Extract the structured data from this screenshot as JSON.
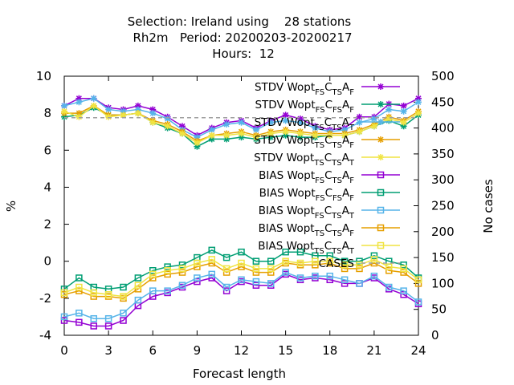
{
  "title": {
    "lines": [
      "Selection: Ireland using    28 stations",
      "Rh2m   Period: 20200203-20200217",
      "Hours:  12"
    ]
  },
  "chart_data": {
    "type": "line",
    "xlabel": "Forecast length",
    "ylabel": "%",
    "y2label": "No cases",
    "xlim": [
      0,
      24
    ],
    "ylim": [
      -4,
      10
    ],
    "y2lim": [
      0,
      500
    ],
    "xticks": [
      0,
      3,
      6,
      9,
      12,
      15,
      18,
      21,
      24
    ],
    "yticks": [
      -4,
      -2,
      0,
      2,
      4,
      6,
      8,
      10
    ],
    "y2ticks": [
      0,
      50,
      100,
      150,
      200,
      250,
      300,
      350,
      400,
      450,
      500
    ],
    "grid": false,
    "legend_position": "top-right",
    "x": [
      0,
      1,
      2,
      3,
      4,
      5,
      6,
      7,
      8,
      9,
      10,
      11,
      12,
      13,
      14,
      15,
      16,
      17,
      18,
      19,
      20,
      21,
      22,
      23,
      24
    ],
    "series": [
      {
        "name": "STDV Wopt_FS C_TS A_F",
        "color": "#9400d3",
        "marker": "star",
        "axis": "y",
        "values": [
          8.4,
          8.8,
          8.8,
          8.3,
          8.2,
          8.4,
          8.2,
          7.8,
          7.3,
          6.8,
          7.2,
          7.5,
          7.6,
          7.2,
          7.6,
          7.9,
          7.7,
          7.3,
          7.1,
          7.2,
          7.8,
          7.8,
          8.5,
          8.4,
          8.8
        ]
      },
      {
        "name": "STDV Wopt_FS C_FS A_F",
        "color": "#009e73",
        "marker": "star",
        "axis": "y",
        "values": [
          7.8,
          7.9,
          8.3,
          7.9,
          7.9,
          8.0,
          7.5,
          7.2,
          6.9,
          6.2,
          6.6,
          6.6,
          6.7,
          6.6,
          6.7,
          6.8,
          6.7,
          6.7,
          6.8,
          6.8,
          7.0,
          7.3,
          7.6,
          7.3,
          7.9
        ]
      },
      {
        "name": "STDV Wopt_FS C_TS A_T",
        "color": "#56b4e9",
        "marker": "star",
        "axis": "y",
        "values": [
          8.4,
          8.6,
          8.8,
          8.2,
          8.1,
          8.2,
          8.0,
          7.7,
          7.1,
          6.7,
          7.1,
          7.4,
          7.5,
          7.1,
          7.5,
          7.6,
          7.5,
          7.2,
          7.0,
          7.1,
          7.5,
          7.7,
          8.2,
          8.1,
          8.6
        ]
      },
      {
        "name": "STDV Wopt_TS C_TS A_F",
        "color": "#e69f00",
        "marker": "star",
        "axis": "y",
        "values": [
          8.0,
          8.0,
          8.4,
          7.9,
          7.9,
          8.0,
          7.6,
          7.4,
          7.0,
          6.5,
          6.8,
          6.9,
          7.0,
          6.8,
          7.0,
          7.1,
          7.0,
          6.9,
          6.9,
          6.9,
          7.1,
          7.4,
          7.8,
          7.6,
          8.1
        ]
      },
      {
        "name": "STDV Wopt_TS C_TS A_T",
        "color": "#f0e442",
        "marker": "star",
        "axis": "y",
        "values": [
          8.1,
          7.8,
          8.4,
          7.8,
          7.9,
          8.0,
          7.5,
          7.3,
          6.9,
          6.4,
          6.8,
          6.8,
          6.9,
          6.7,
          6.9,
          7.0,
          6.9,
          6.8,
          6.8,
          6.8,
          7.0,
          7.3,
          7.7,
          7.5,
          8.0
        ]
      },
      {
        "name": "BIAS Wopt_FS C_TS A_F",
        "color": "#9400d3",
        "marker": "square",
        "axis": "y",
        "values": [
          -3.2,
          -3.3,
          -3.5,
          -3.5,
          -3.2,
          -2.4,
          -1.9,
          -1.7,
          -1.4,
          -1.1,
          -0.9,
          -1.6,
          -1.1,
          -1.3,
          -1.3,
          -0.7,
          -1.0,
          -0.9,
          -1.0,
          -1.2,
          -1.2,
          -0.9,
          -1.5,
          -1.8,
          -2.3
        ]
      },
      {
        "name": "BIAS Wopt_FS C_FS A_F",
        "color": "#009e73",
        "marker": "square",
        "axis": "y",
        "values": [
          -1.5,
          -0.9,
          -1.4,
          -1.5,
          -1.4,
          -0.9,
          -0.5,
          -0.3,
          -0.2,
          0.2,
          0.6,
          0.2,
          0.5,
          0.0,
          0.0,
          0.5,
          0.5,
          0.3,
          0.3,
          0.0,
          0.0,
          0.3,
          0.0,
          -0.2,
          -0.9
        ]
      },
      {
        "name": "BIAS Wopt_FS C_TS A_T",
        "color": "#56b4e9",
        "marker": "square",
        "axis": "y",
        "values": [
          -3.0,
          -2.8,
          -3.1,
          -3.1,
          -2.8,
          -2.1,
          -1.6,
          -1.6,
          -1.3,
          -0.9,
          -0.7,
          -1.4,
          -1.0,
          -1.1,
          -1.2,
          -0.6,
          -0.9,
          -0.8,
          -0.8,
          -1.0,
          -1.2,
          -0.8,
          -1.4,
          -1.6,
          -2.2
        ]
      },
      {
        "name": "BIAS Wopt_TS C_TS A_F",
        "color": "#e69f00",
        "marker": "square",
        "axis": "y",
        "values": [
          -1.8,
          -1.6,
          -1.9,
          -1.9,
          -2.0,
          -1.5,
          -0.9,
          -0.7,
          -0.6,
          -0.3,
          -0.1,
          -0.6,
          -0.3,
          -0.6,
          -0.6,
          -0.1,
          -0.2,
          -0.2,
          -0.1,
          -0.4,
          -0.4,
          -0.1,
          -0.5,
          -0.6,
          -1.2
        ]
      },
      {
        "name": "BIAS Wopt_TS C_TS A_T",
        "color": "#f0e442",
        "marker": "square",
        "axis": "y",
        "values": [
          -1.7,
          -1.4,
          -1.7,
          -1.8,
          -1.9,
          -1.3,
          -0.7,
          -0.5,
          -0.4,
          -0.1,
          0.1,
          -0.4,
          -0.1,
          -0.4,
          -0.4,
          0.0,
          -0.1,
          0.0,
          0.0,
          -0.2,
          -0.2,
          0.1,
          -0.3,
          -0.4,
          -1.0
        ]
      },
      {
        "name": "CASES",
        "color": "#a0a0a0",
        "marker": "none",
        "dash": true,
        "axis": "y2",
        "values": [
          420,
          420,
          420,
          420,
          420,
          420,
          420,
          420,
          420,
          420,
          420,
          420,
          420,
          420,
          420,
          420,
          420,
          420,
          420,
          420,
          420,
          420,
          420,
          420,
          420
        ]
      }
    ],
    "legend": [
      {
        "prefix": "STDV Wopt",
        "parts": [
          [
            "FS",
            "C"
          ],
          [
            "TS",
            "A"
          ],
          [
            "F",
            ""
          ]
        ]
      },
      {
        "prefix": "STDV Wopt",
        "parts": [
          [
            "FS",
            "C"
          ],
          [
            "FS",
            "A"
          ],
          [
            "F",
            ""
          ]
        ]
      },
      {
        "prefix": "STDV Wopt",
        "parts": [
          [
            "FS",
            "C"
          ],
          [
            "TS",
            "A"
          ],
          [
            "T",
            ""
          ]
        ]
      },
      {
        "prefix": "STDV Wopt",
        "parts": [
          [
            "TS",
            "C"
          ],
          [
            "TS",
            "A"
          ],
          [
            "F",
            ""
          ]
        ]
      },
      {
        "prefix": "STDV Wopt",
        "parts": [
          [
            "TS",
            "C"
          ],
          [
            "TS",
            "A"
          ],
          [
            "T",
            ""
          ]
        ]
      },
      {
        "prefix": "BIAS Wopt",
        "parts": [
          [
            "FS",
            "C"
          ],
          [
            "TS",
            "A"
          ],
          [
            "F",
            ""
          ]
        ]
      },
      {
        "prefix": "BIAS Wopt",
        "parts": [
          [
            "FS",
            "C"
          ],
          [
            "FS",
            "A"
          ],
          [
            "F",
            ""
          ]
        ]
      },
      {
        "prefix": "BIAS Wopt",
        "parts": [
          [
            "FS",
            "C"
          ],
          [
            "TS",
            "A"
          ],
          [
            "T",
            ""
          ]
        ]
      },
      {
        "prefix": "BIAS Wopt",
        "parts": [
          [
            "TS",
            "C"
          ],
          [
            "TS",
            "A"
          ],
          [
            "F",
            ""
          ]
        ]
      },
      {
        "prefix": "BIAS Wopt",
        "parts": [
          [
            "TS",
            "C"
          ],
          [
            "TS",
            "A"
          ],
          [
            "T",
            ""
          ]
        ]
      },
      {
        "prefix": "CASES",
        "parts": []
      }
    ]
  }
}
